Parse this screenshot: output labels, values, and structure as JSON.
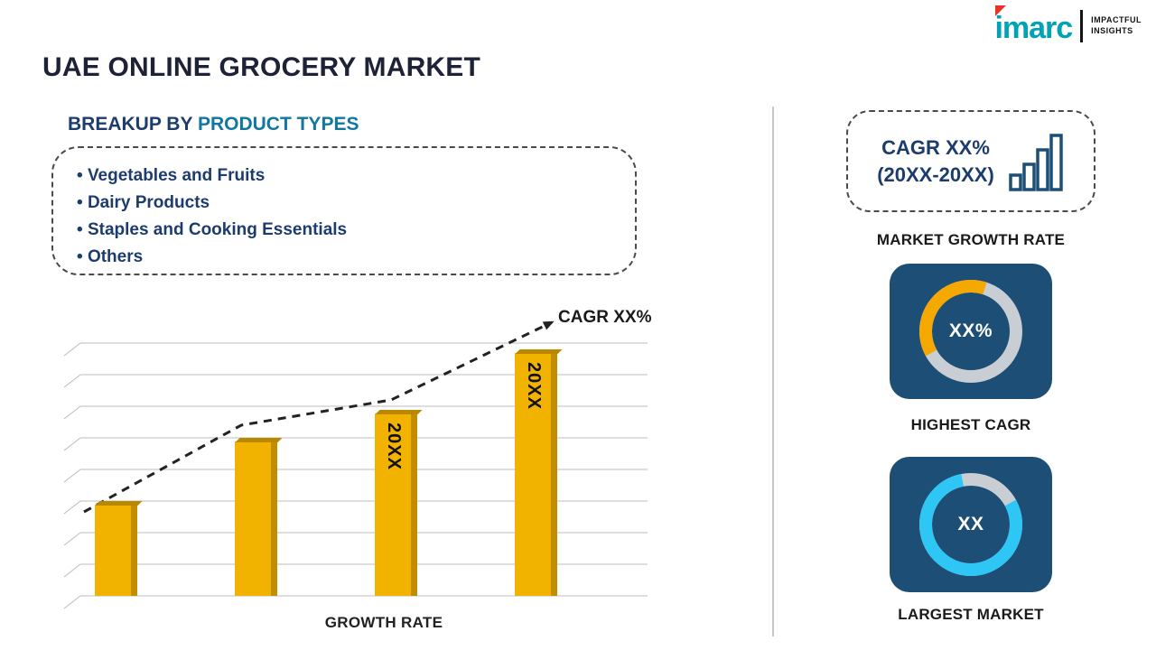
{
  "logo": {
    "brand": "imarc",
    "tagline": [
      "IMPACTFUL",
      "INSIGHTS"
    ]
  },
  "title": "UAE ONLINE GROCERY MARKET",
  "breakup": {
    "heading_prefix": "BREAKUP BY ",
    "heading_highlight": "PRODUCT TYPES",
    "items": [
      "Vegetables and Fruits",
      "Dairy Products",
      "Staples and Cooking Essentials",
      "Others"
    ]
  },
  "chart_data": [
    {
      "type": "bar",
      "title": "",
      "values": [
        36,
        61,
        72,
        96
      ],
      "bar_labels": [
        "",
        "",
        "20XX",
        "20XX"
      ],
      "ylim": [
        0,
        100
      ],
      "xlabel": "GROWTH RATE",
      "grid": true,
      "trend_annotation": "CAGR XX%",
      "bar_color": "#F2B200",
      "legend": "none"
    },
    {
      "type": "pie",
      "style": "donut",
      "center_label": "XX%",
      "caption": "HIGHEST CAGR",
      "segment_pct": 38,
      "segment_offset": 42,
      "segment_color": "#F5A800",
      "track_color": "#C9CED4"
    },
    {
      "type": "pie",
      "style": "donut",
      "center_label": "XX",
      "caption": "LARGEST MARKET",
      "segment_pct": 80,
      "segment_offset": 92,
      "segment_color": "#2EC6F5",
      "track_color": "#C9CED4"
    }
  ],
  "right_panel": {
    "growth_box": {
      "line1": "CAGR XX%",
      "line2": "(20XX-20XX)"
    },
    "captions": {
      "market_growth": "MARKET GROWTH RATE",
      "highest_cagr": "HIGHEST CAGR",
      "largest_market": "LARGEST MARKET"
    }
  },
  "colors": {
    "navy_text": "#1D3C6E",
    "teal_heading": "#1277A0",
    "bar_yellow": "#F2B200",
    "card_bg": "#1D4E75",
    "logo_teal": "#00A3B4",
    "logo_red": "#E8322A"
  }
}
